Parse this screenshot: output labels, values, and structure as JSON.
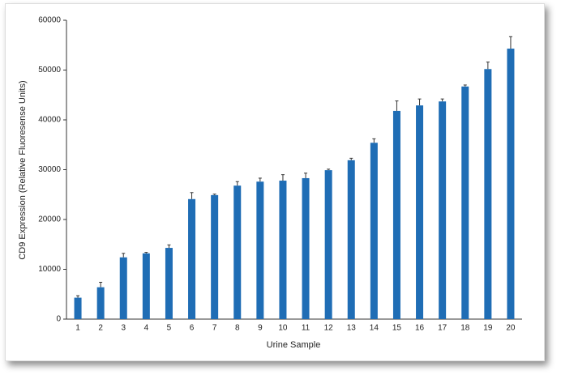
{
  "chart_data": {
    "type": "bar",
    "x_label": "Urine Sample",
    "y_label": "CD9 Expression (Relative Fluoresense Units)",
    "categories": [
      "1",
      "2",
      "3",
      "4",
      "5",
      "6",
      "7",
      "8",
      "9",
      "10",
      "11",
      "12",
      "13",
      "14",
      "15",
      "16",
      "17",
      "18",
      "19",
      "20"
    ],
    "values": [
      4300,
      6400,
      12400,
      13200,
      14300,
      24100,
      24900,
      26800,
      27600,
      27800,
      28300,
      29900,
      31900,
      35400,
      41800,
      42900,
      43700,
      46700,
      50200,
      54300
    ],
    "errors": [
      400,
      1000,
      800,
      200,
      600,
      1300,
      200,
      800,
      700,
      1200,
      1000,
      200,
      400,
      800,
      2000,
      1300,
      500,
      300,
      1400,
      2400
    ],
    "color": "#1f6db5",
    "ylim": [
      0,
      60000
    ],
    "yticks": [
      0,
      10000,
      20000,
      30000,
      40000,
      50000,
      60000
    ]
  }
}
